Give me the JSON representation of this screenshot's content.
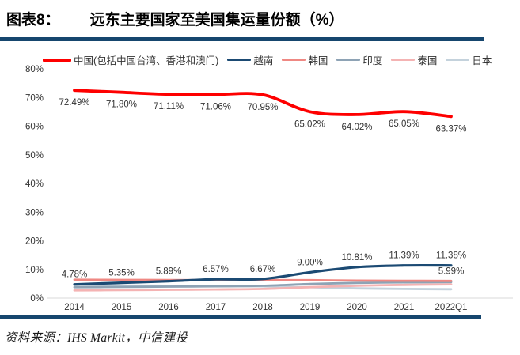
{
  "header": {
    "fig_label": "图表8：",
    "title": "远东主要国家至美国集运量份额（%）"
  },
  "source": "资料来源：IHS Markit，中信建投",
  "colors": {
    "divider_bar": "#16466e",
    "axis_text": "#333333",
    "zero_line": "#d9d9d9",
    "data_label": "#333333"
  },
  "chart_data": {
    "type": "line",
    "title": "远东主要国家至美国集运量份额（%）",
    "xlabel": "",
    "ylabel": "",
    "ylim": [
      0,
      80
    ],
    "grid": false,
    "legend_position": "top",
    "y_ticks": [
      "0%",
      "10%",
      "20%",
      "30%",
      "40%",
      "50%",
      "60%",
      "70%",
      "80%"
    ],
    "categories": [
      "2014",
      "2015",
      "2016",
      "2017",
      "2018",
      "2019",
      "2020",
      "2021",
      "2022Q1"
    ],
    "series": [
      {
        "key": "china",
        "name": "中国(包括中国台湾、香港和澳门)",
        "color": "#fe0000",
        "stroke_width": 3.8,
        "values": [
          72.49,
          71.8,
          71.11,
          71.06,
          70.95,
          65.02,
          64.02,
          65.05,
          63.37
        ],
        "labels": [
          "72.49%",
          "71.80%",
          "71.11%",
          "71.06%",
          "70.95%",
          "65.02%",
          "64.02%",
          "65.05%",
          "63.37%"
        ],
        "label_pos": "below"
      },
      {
        "key": "vietnam",
        "name": "越南",
        "color": "#1b4a73",
        "stroke_width": 3.2,
        "values": [
          4.78,
          5.35,
          5.89,
          6.57,
          6.67,
          9.0,
          10.81,
          11.39,
          11.38
        ],
        "labels": [
          "4.78%",
          "5.35%",
          "5.89%",
          "6.57%",
          "6.67%",
          "9.00%",
          "10.81%",
          "11.39%",
          "11.38%"
        ],
        "label_pos": "above"
      },
      {
        "key": "korea",
        "name": "韩国",
        "color": "#ef8883",
        "stroke_width": 2.8,
        "values": [
          6.4,
          6.35,
          6.3,
          6.25,
          6.3,
          6.25,
          6.1,
          6.05,
          5.99
        ],
        "labels": [
          "",
          "",
          "",
          "",
          "",
          "",
          "",
          "",
          "5.99%"
        ],
        "label_pos": "above"
      },
      {
        "key": "india",
        "name": "印度",
        "color": "#8ea3b5",
        "stroke_width": 2.8,
        "values": [
          3.8,
          3.9,
          4.0,
          4.1,
          4.3,
          4.9,
          5.3,
          5.5,
          5.6
        ],
        "labels": [],
        "label_pos": "none"
      },
      {
        "key": "thailand",
        "name": "泰国",
        "color": "#f4b3b3",
        "stroke_width": 2.8,
        "values": [
          2.7,
          2.8,
          2.9,
          3.0,
          3.2,
          3.8,
          4.3,
          4.6,
          4.8
        ],
        "labels": [],
        "label_pos": "none"
      },
      {
        "key": "japan",
        "name": "日本",
        "color": "#c4d2dc",
        "stroke_width": 2.8,
        "values": [
          4.5,
          4.4,
          4.3,
          4.2,
          4.1,
          3.8,
          3.4,
          3.2,
          3.1
        ],
        "labels": [],
        "label_pos": "none"
      }
    ]
  }
}
